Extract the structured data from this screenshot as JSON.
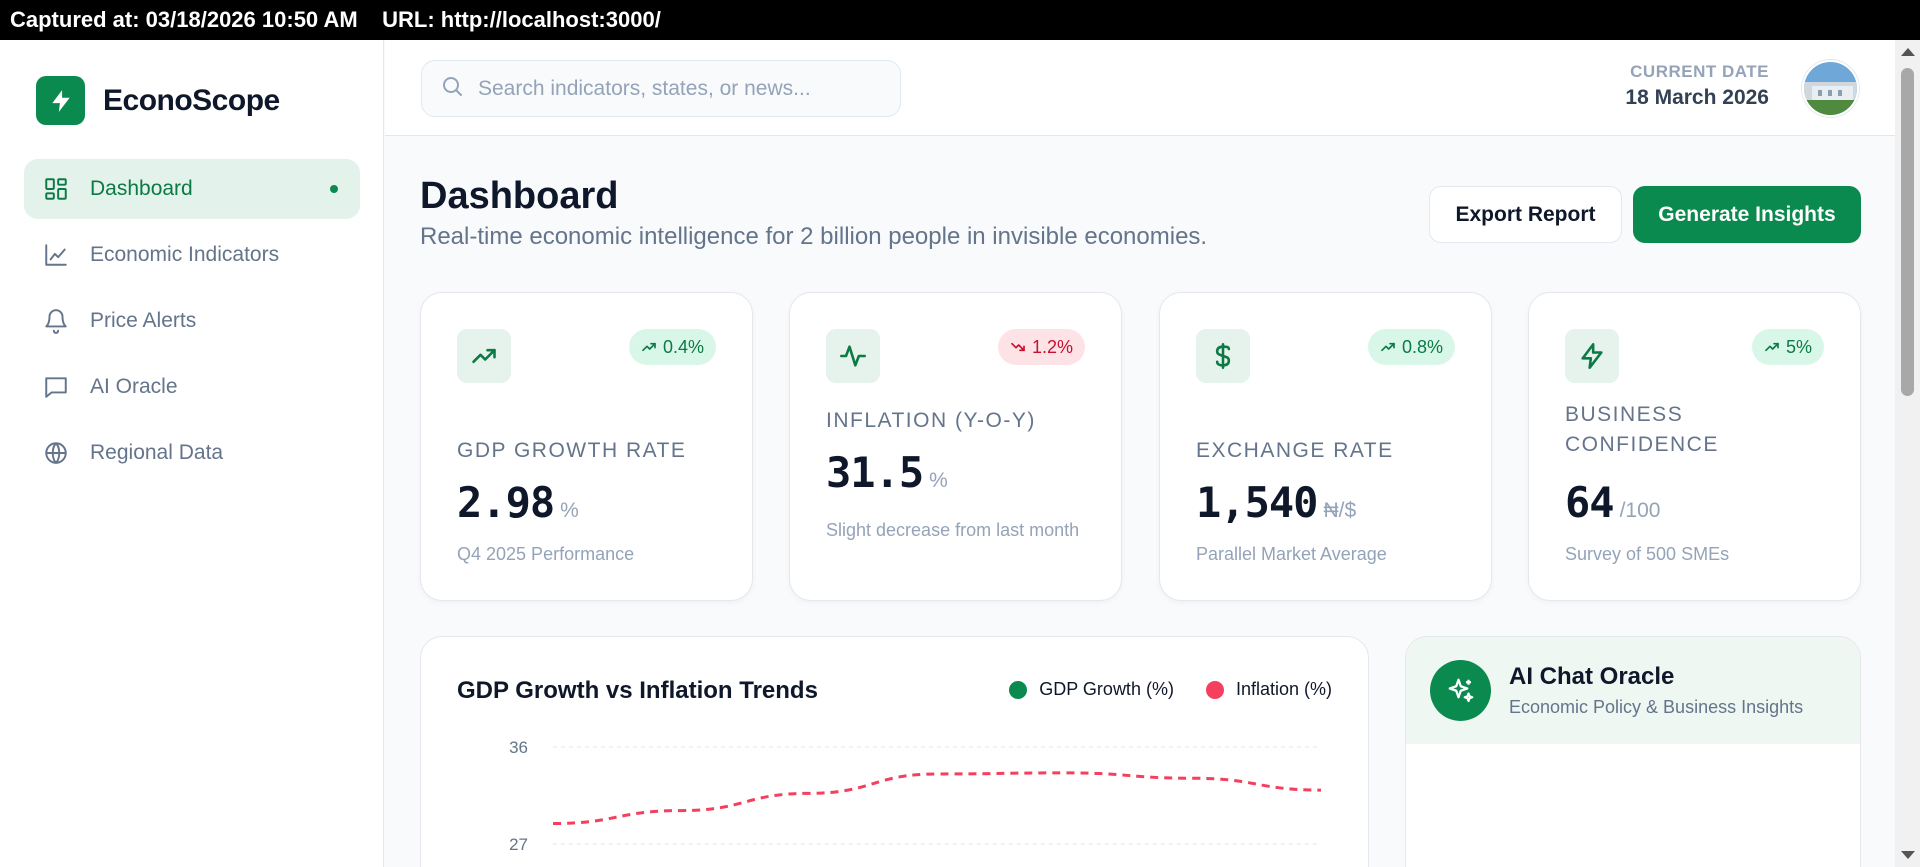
{
  "capture": {
    "text": "Captured at: 03/18/2026 10:50 AM    URL: http://localhost:3000/"
  },
  "brand": {
    "name": "EconoScope"
  },
  "sidebar": {
    "items": [
      {
        "label": "Dashboard",
        "icon": "dashboard-grid-icon",
        "active": true
      },
      {
        "label": "Economic Indicators",
        "icon": "line-chart-icon"
      },
      {
        "label": "Price Alerts",
        "icon": "bell-icon"
      },
      {
        "label": "AI Oracle",
        "icon": "chat-bubble-icon"
      },
      {
        "label": "Regional Data",
        "icon": "globe-icon"
      }
    ]
  },
  "header": {
    "search_placeholder": "Search indicators, states, or news...",
    "date_label": "CURRENT DATE",
    "date_value": "18 March 2026"
  },
  "page": {
    "title": "Dashboard",
    "subtitle": "Real-time economic intelligence for 2 billion people in invisible economies.",
    "export_label": "Export Report",
    "generate_label": "Generate Insights"
  },
  "cards": [
    {
      "label": "GDP GROWTH RATE",
      "value": "2.98",
      "unit": "%",
      "note": "Q4 2025 Performance",
      "badge": "0.4%",
      "trend": "up",
      "icon": "trending-up-icon"
    },
    {
      "label": "INFLATION (Y-O-Y)",
      "value": "31.5",
      "unit": "%",
      "note": "Slight decrease from last month",
      "badge": "1.2%",
      "trend": "down",
      "icon": "activity-pulse-icon"
    },
    {
      "label": "EXCHANGE RATE",
      "value": "1,540",
      "unit": "₦/$",
      "note": "Parallel Market Average",
      "badge": "0.8%",
      "trend": "up",
      "icon": "dollar-icon"
    },
    {
      "label": "BUSINESS CONFIDENCE",
      "value": "64",
      "unit": "/100",
      "note": "Survey of 500 SMEs",
      "badge": "5%",
      "trend": "up",
      "icon": "lightning-icon"
    }
  ],
  "chart": {
    "title": "GDP Growth vs Inflation Trends",
    "legend": [
      {
        "name": "GDP Growth (%)",
        "color": "#0b8a4f"
      },
      {
        "name": "Inflation (%)",
        "color": "#f43f5e"
      }
    ]
  },
  "chart_data": {
    "type": "line",
    "title": "GDP Growth vs Inflation Trends",
    "yticks": [
      36,
      27
    ],
    "ylim": [
      27,
      36
    ],
    "x": [
      0,
      1,
      2,
      3,
      4,
      5,
      6
    ],
    "series": [
      {
        "name": "Inflation (%)",
        "values": [
          28.9,
          30.1,
          31.7,
          33.5,
          33.6,
          33.1,
          32.0
        ],
        "color": "#f43f5e",
        "style": "dashed"
      }
    ],
    "grid": true,
    "legend_position": "top-right"
  },
  "chat": {
    "title": "AI Chat Oracle",
    "subtitle": "Economic Policy & Business Insights"
  }
}
